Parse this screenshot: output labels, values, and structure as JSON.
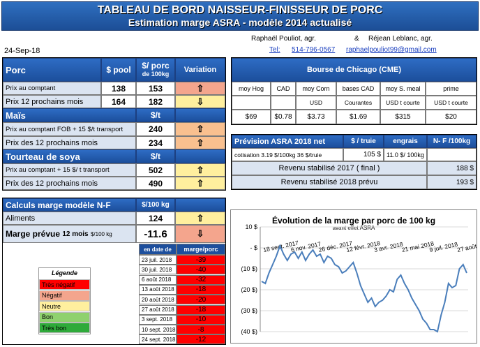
{
  "title": {
    "line1": "TABLEAU DE BORD NAISSEUR-FINISSEUR DE PORC",
    "line2": "Estimation marge ASRA - modèle 2014 actualisé"
  },
  "date": "24-Sep-18",
  "authors": {
    "name1": "Raphaël Pouliot, agr.",
    "amp": "&",
    "name2": "Réjean Leblanc, agr.",
    "tel_label": "Tel:",
    "phone": "514-796-0567",
    "email": "raphaelpouliot99@gmail.com"
  },
  "porc": {
    "label": "Porc",
    "col_pool": "$ pool",
    "col_porc": "$/ porc",
    "col_porc2": "de 100kg",
    "col_var": "Variation",
    "rows": [
      {
        "label": "Prix au comptant",
        "pool": "138",
        "porc": "153",
        "arrow": "⇧",
        "color": "#f4a58d"
      },
      {
        "label": "Prix 12 prochains mois",
        "pool": "164",
        "porc": "182",
        "arrow": "⇩",
        "color": "#ffef9e"
      }
    ]
  },
  "mais": {
    "label": "Maïs",
    "unit": "$/t",
    "rows": [
      {
        "label": "Prix au comptant FOB + 15 $/t transport",
        "value": "240",
        "arrow": "⇧",
        "color": "#f9c08f"
      },
      {
        "label": "Prix des 12 prochains mois",
        "value": "234",
        "arrow": "⇧",
        "color": "#f9c08f"
      }
    ]
  },
  "soya": {
    "label": "Tourteau de soya",
    "unit": "$/t",
    "rows": [
      {
        "label": "Prix au comptant + 15 $/ t transport",
        "value": "502",
        "arrow": "⇧",
        "color": "#ffef9e"
      },
      {
        "label": "Prix des 12 prochains mois",
        "value": "490",
        "arrow": "⇧",
        "color": "#ffef9e"
      }
    ]
  },
  "bourse": {
    "title": "Bourse de Chicago (CME)",
    "headers": [
      "moy Hog",
      "CAD",
      "moy Corn",
      "bases CAD",
      "moy S. meal",
      "prime"
    ],
    "units": [
      "",
      "",
      "USD",
      "Courantes",
      "USD t courte",
      "USD t courte"
    ],
    "values": [
      "$69",
      "$0.78",
      "$3.73",
      "$1.69",
      "$315",
      "$20"
    ]
  },
  "prevision": {
    "title": "Prévision ASRA 2018 net",
    "col_truie": "$ / truie",
    "col_engrais": "engrais",
    "col_nf": "N- F /100kg",
    "cotisation_label": "cotisation 3.19 $/100kg  36 $/truie",
    "truie_value": "105  $",
    "engrais_value": "11.0 $/ 100kg",
    "revenu2017_label": "Revenu stabilisé 2017 ( final )",
    "revenu2017_value": "188 $",
    "revenu2018_label": "Revenu stabilisé 2018 prévu",
    "revenu2018_value": "193 $"
  },
  "calculs": {
    "title": "Calculs marge  modèle N-F",
    "unit": "$/100 kg",
    "aliments_label": "Aliments",
    "aliments_value": "124",
    "aliments_arrow": "⇧",
    "marge_label": "Marge prévue",
    "marge_sub": "12 mois",
    "marge_unit": "$/100 kg",
    "marge_value": "-11.6",
    "marge_arrow": "⇩",
    "history_header_date": "en date de",
    "history_header_val": "marge/porc",
    "history": [
      {
        "date": "23 juil. 2018",
        "value": "-39"
      },
      {
        "date": "30 juil. 2018",
        "value": "-40"
      },
      {
        "date": "6 août 2018",
        "value": "-32"
      },
      {
        "date": "13 août 2018",
        "value": "-18"
      },
      {
        "date": "20 août 2018",
        "value": "-20"
      },
      {
        "date": "27 août 2018",
        "value": "-18"
      },
      {
        "date": "3 sept. 2018",
        "value": "-10"
      },
      {
        "date": "10 sept. 2018",
        "value": "-8"
      },
      {
        "date": "24 sept. 2018",
        "value": "-12"
      }
    ]
  },
  "legend": {
    "title": "Légende",
    "items": [
      {
        "label": "Très négatif",
        "color": "#ff0000"
      },
      {
        "label": "Négatif",
        "color": "#f4a58d"
      },
      {
        "label": "Neutre",
        "color": "#ffef9e"
      },
      {
        "label": "Bon",
        "color": "#8fd16e"
      },
      {
        "label": "Très bon",
        "color": "#2eaa3a"
      }
    ]
  },
  "chart_data": {
    "type": "line",
    "title": "Évolution  de la marge par porc de 100  kg",
    "subtitle": "avant effet ASRA",
    "y_ticks": [
      "10 $",
      "-  $",
      "(10 $)",
      "(20 $)",
      "(30 $)",
      "(40 $)"
    ],
    "ylim": [
      -40,
      10
    ],
    "x_labels": [
      "18 sept. 2017",
      "6 nov. 2017",
      "26 déc. 2017",
      "12 févr. 2018",
      "3 avr. 2018",
      "21 mai 2018",
      "9 juil. 2018",
      "27 août 2018"
    ],
    "color": "#4a7ebb",
    "series": [
      {
        "values": [
          -16,
          -17,
          -12,
          -8,
          -4,
          1,
          -3,
          -6,
          -3,
          -2,
          -5,
          -2,
          -6,
          -3,
          -1,
          -4,
          -3,
          -7,
          -4,
          -5,
          -8,
          -9,
          -12,
          -11,
          -9,
          -7,
          -12,
          -18,
          -22,
          -26,
          -24,
          -28,
          -26,
          -25,
          -23,
          -20,
          -21,
          -15,
          -13,
          -17,
          -20,
          -24,
          -27,
          -30,
          -34,
          -36,
          -39,
          -39,
          -40,
          -32,
          -26,
          -17,
          -19,
          -18,
          -10,
          -8,
          -12
        ]
      }
    ]
  }
}
